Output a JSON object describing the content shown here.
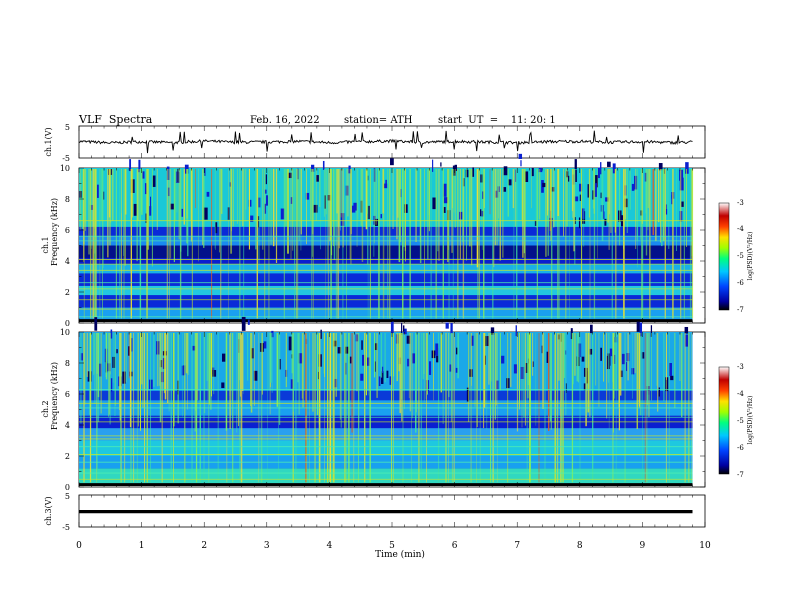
{
  "header": {
    "title": "VLF  Spectra",
    "date": "Feb. 16, 2022",
    "station": "station= ATH",
    "start": "start  UT  =    11: 20: 1"
  },
  "chart_data": [
    {
      "type": "line",
      "name": "ch1-waveform",
      "ylabel": "ch.1(V)",
      "ylim": [
        -5,
        5
      ],
      "yticks": [
        "5",
        "-5"
      ],
      "x": [
        0,
        0.5,
        1,
        1.5,
        2,
        2.5,
        3,
        3.5,
        4,
        4.5,
        5,
        5.5,
        6,
        6.5,
        7,
        7.5,
        8,
        8.5,
        9,
        9.5,
        9.8
      ],
      "values": [
        0.2,
        -0.3,
        0.1,
        -0.2,
        0.3,
        -0.1,
        0.0,
        0.2,
        -0.2,
        0.1,
        0.3,
        -0.1,
        0.2,
        0.0,
        -0.2,
        0.1,
        0.2,
        -0.1,
        0.1,
        -0.2,
        0.0
      ],
      "xlim": [
        0,
        10
      ]
    },
    {
      "type": "heatmap",
      "name": "ch1-spectrogram",
      "ylabel": "ch.1\nFrequency  (kHz)",
      "ylim": [
        0,
        10
      ],
      "yticks": [
        "0",
        "2",
        "4",
        "6",
        "8",
        "10"
      ],
      "xlim": [
        0,
        10
      ],
      "data_extent_min": 9.8,
      "colorbar": {
        "label": "log(PSD)(V²/Hz)",
        "range": [
          -7,
          -3
        ],
        "ticks": [
          "-3",
          "-4",
          "-5",
          "-6",
          "-7"
        ]
      }
    },
    {
      "type": "heatmap",
      "name": "ch2-spectrogram",
      "ylabel": "ch.2\nFrequency  (kHz)",
      "ylim": [
        0,
        10
      ],
      "yticks": [
        "0",
        "2",
        "4",
        "6",
        "8",
        "10"
      ],
      "xlim": [
        0,
        10
      ],
      "data_extent_min": 9.8,
      "colorbar": {
        "label": "log(PSD)(V²/Hz)",
        "range": [
          -7,
          -3
        ],
        "ticks": [
          "-3",
          "-4",
          "-5",
          "-6",
          "-7"
        ]
      }
    },
    {
      "type": "line",
      "name": "ch3-waveform",
      "ylabel": "ch.3(V)",
      "ylim": [
        -5,
        5
      ],
      "yticks": [
        "5",
        "-5"
      ],
      "x": [
        0,
        9.8
      ],
      "values": [
        -0.2,
        -0.2
      ],
      "xlim": [
        0,
        10
      ],
      "xlabel": "Time  (min)",
      "xticks": [
        "0",
        "1",
        "2",
        "3",
        "4",
        "5",
        "6",
        "7",
        "8",
        "9",
        "10"
      ]
    }
  ],
  "colors": {
    "spectrogram_base": "#0a1fd0",
    "spectrogram_band": "#22c8e0",
    "spectrogram_line": "#c8e82a",
    "colormap": [
      "#000000",
      "#0000a0",
      "#0044ff",
      "#00c8ff",
      "#00ff80",
      "#a0ff00",
      "#ffe000",
      "#ff4000",
      "#c00000",
      "#ffffff"
    ]
  }
}
